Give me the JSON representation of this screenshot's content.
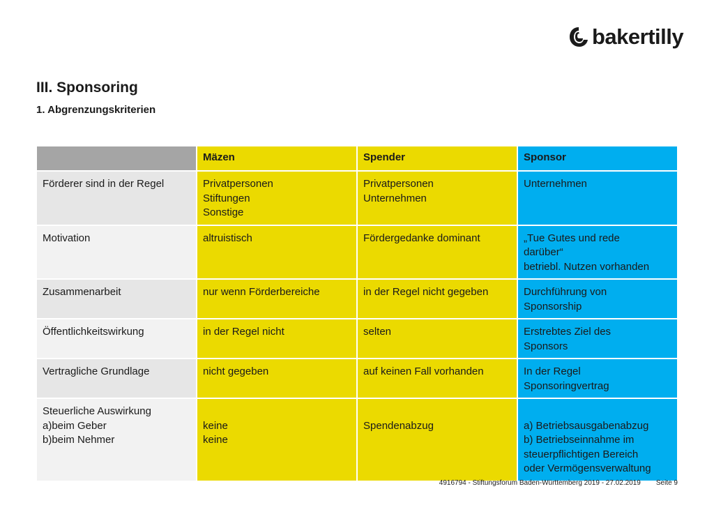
{
  "logo": {
    "text": "bakertilly"
  },
  "page": {
    "title": "III. Sponsoring",
    "subtitle": "1. Abgrenzungskriterien"
  },
  "table": {
    "headers": [
      "",
      "Mäzen",
      "Spender",
      "Sponsor"
    ],
    "rows": [
      {
        "label": [
          "Förderer sind in der Regel"
        ],
        "mazen": [
          "Privatpersonen",
          "Stiftungen",
          "Sonstige"
        ],
        "spender": [
          "Privatpersonen",
          "Unternehmen"
        ],
        "sponsor": [
          "Unternehmen"
        ]
      },
      {
        "label": [
          "Motivation"
        ],
        "mazen": [
          "altruistisch"
        ],
        "spender": [
          "Fördergedanke dominant"
        ],
        "sponsor": [
          "„Tue Gutes und rede",
          "darüber“",
          "betriebl. Nutzen vorhanden"
        ]
      },
      {
        "label": [
          "Zusammenarbeit"
        ],
        "mazen": [
          "nur wenn Förderbereiche"
        ],
        "spender": [
          "in der Regel nicht gegeben"
        ],
        "sponsor": [
          "Durchführung von",
          "Sponsorship"
        ]
      },
      {
        "label": [
          "Öffentlichkeitswirkung"
        ],
        "mazen": [
          "in der Regel nicht"
        ],
        "spender": [
          "selten"
        ],
        "sponsor": [
          "Erstrebtes Ziel des",
          "Sponsors"
        ]
      },
      {
        "label": [
          "Vertragliche Grundlage"
        ],
        "mazen": [
          "nicht gegeben"
        ],
        "spender": [
          "auf keinen Fall vorhanden"
        ],
        "sponsor": [
          "In der Regel",
          "Sponsoringvertrag"
        ]
      },
      {
        "label": [
          "Steuerliche Auswirkung",
          "a)beim Geber",
          "b)beim Nehmer"
        ],
        "mazen": [
          "",
          "keine",
          "keine"
        ],
        "spender": [
          "",
          "Spendenabzug"
        ],
        "sponsor": [
          "",
          "a) Betriebsausgabenabzug",
          "b) Betriebseinnahme im",
          "steuerpflichtigen Bereich",
          "oder Vermögensverwaltung"
        ]
      }
    ]
  },
  "footer": {
    "text": "4916794 - Stiftungsforum Baden-Württemberg 2019 - 27.02.2019",
    "page": "Seite 9"
  },
  "colors": {
    "header_gray": "#a5a5a5",
    "yellow": "#ebda00",
    "blue": "#00aeef",
    "label_gray": "#e6e6e6"
  }
}
